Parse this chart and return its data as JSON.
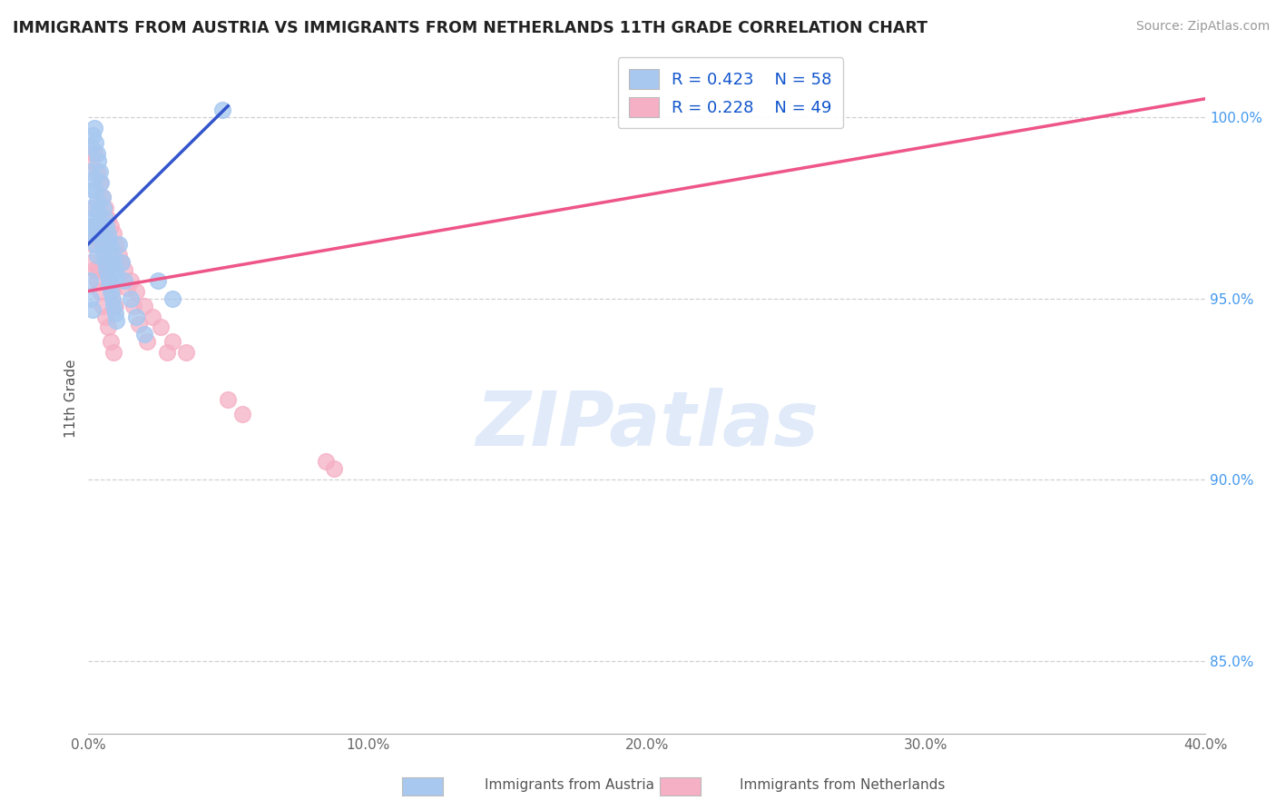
{
  "title": "IMMIGRANTS FROM AUSTRIA VS IMMIGRANTS FROM NETHERLANDS 11TH GRADE CORRELATION CHART",
  "source": "Source: ZipAtlas.com",
  "ylabel": "11th Grade",
  "xmin": 0.0,
  "xmax": 40.0,
  "ymin": 83.0,
  "ymax": 101.5,
  "right_yticks": [
    85.0,
    90.0,
    95.0,
    100.0
  ],
  "watermark": "ZIPatlas",
  "legend_R1": "R = 0.423",
  "legend_N1": "N = 58",
  "legend_R2": "R = 0.228",
  "legend_N2": "N = 49",
  "color_austria": "#A8C8F0",
  "color_netherlands": "#F5B0C5",
  "trendline_austria": "#3355CC",
  "trendline_netherlands": "#EE5588",
  "austria_x": [
    0.05,
    0.1,
    0.15,
    0.2,
    0.25,
    0.3,
    0.35,
    0.4,
    0.45,
    0.5,
    0.55,
    0.6,
    0.65,
    0.7,
    0.75,
    0.8,
    0.85,
    0.9,
    0.95,
    1.0,
    0.05,
    0.1,
    0.15,
    0.2,
    0.25,
    0.3,
    0.35,
    0.4,
    0.45,
    0.5,
    0.55,
    0.6,
    0.65,
    0.7,
    0.75,
    0.8,
    0.85,
    0.9,
    0.95,
    1.0,
    1.1,
    1.2,
    1.3,
    1.5,
    1.7,
    2.0,
    2.5,
    3.0,
    0.05,
    0.1,
    0.15,
    0.2,
    0.25,
    0.3,
    0.05,
    0.1,
    0.15,
    4.8
  ],
  "austria_y": [
    98.5,
    99.2,
    99.5,
    99.7,
    99.3,
    99.0,
    98.8,
    98.5,
    98.2,
    97.8,
    97.5,
    97.2,
    97.0,
    96.8,
    96.6,
    96.4,
    96.2,
    96.0,
    95.8,
    95.6,
    97.0,
    97.5,
    98.0,
    98.3,
    98.0,
    97.7,
    97.4,
    97.1,
    96.8,
    96.5,
    96.2,
    96.0,
    95.8,
    95.6,
    95.4,
    95.2,
    95.0,
    94.8,
    94.6,
    94.4,
    96.5,
    96.0,
    95.5,
    95.0,
    94.5,
    94.0,
    95.5,
    95.0,
    96.8,
    97.2,
    97.0,
    96.8,
    96.5,
    96.2,
    95.5,
    95.0,
    94.7,
    100.2
  ],
  "netherlands_x": [
    0.1,
    0.2,
    0.3,
    0.4,
    0.5,
    0.6,
    0.7,
    0.8,
    0.9,
    1.0,
    1.1,
    1.2,
    1.3,
    1.5,
    1.7,
    2.0,
    2.3,
    2.6,
    3.0,
    3.5,
    0.15,
    0.25,
    0.35,
    0.45,
    0.55,
    0.65,
    0.75,
    0.85,
    0.95,
    0.1,
    0.2,
    0.3,
    0.4,
    0.5,
    0.6,
    0.7,
    0.8,
    0.9,
    1.4,
    1.6,
    2.8,
    5.0,
    5.5,
    1.8,
    2.1,
    8.5,
    8.8,
    0.15,
    0.35
  ],
  "netherlands_y": [
    98.8,
    99.0,
    98.5,
    98.2,
    97.8,
    97.5,
    97.2,
    97.0,
    96.8,
    96.5,
    96.2,
    96.0,
    95.8,
    95.5,
    95.2,
    94.8,
    94.5,
    94.2,
    93.8,
    93.5,
    97.5,
    97.0,
    96.8,
    96.5,
    96.2,
    95.8,
    95.5,
    95.2,
    94.8,
    96.0,
    95.8,
    95.5,
    95.2,
    94.8,
    94.5,
    94.2,
    93.8,
    93.5,
    95.3,
    94.8,
    93.5,
    92.2,
    91.8,
    94.3,
    93.8,
    90.5,
    90.3,
    96.5,
    95.8
  ],
  "austria_trend_x": [
    0.0,
    5.0
  ],
  "austria_trend_y": [
    96.5,
    100.3
  ],
  "netherlands_trend_x": [
    0.0,
    40.0
  ],
  "netherlands_trend_y": [
    95.2,
    100.5
  ],
  "grid_color": "#CCCCCC",
  "background_color": "#FFFFFF"
}
